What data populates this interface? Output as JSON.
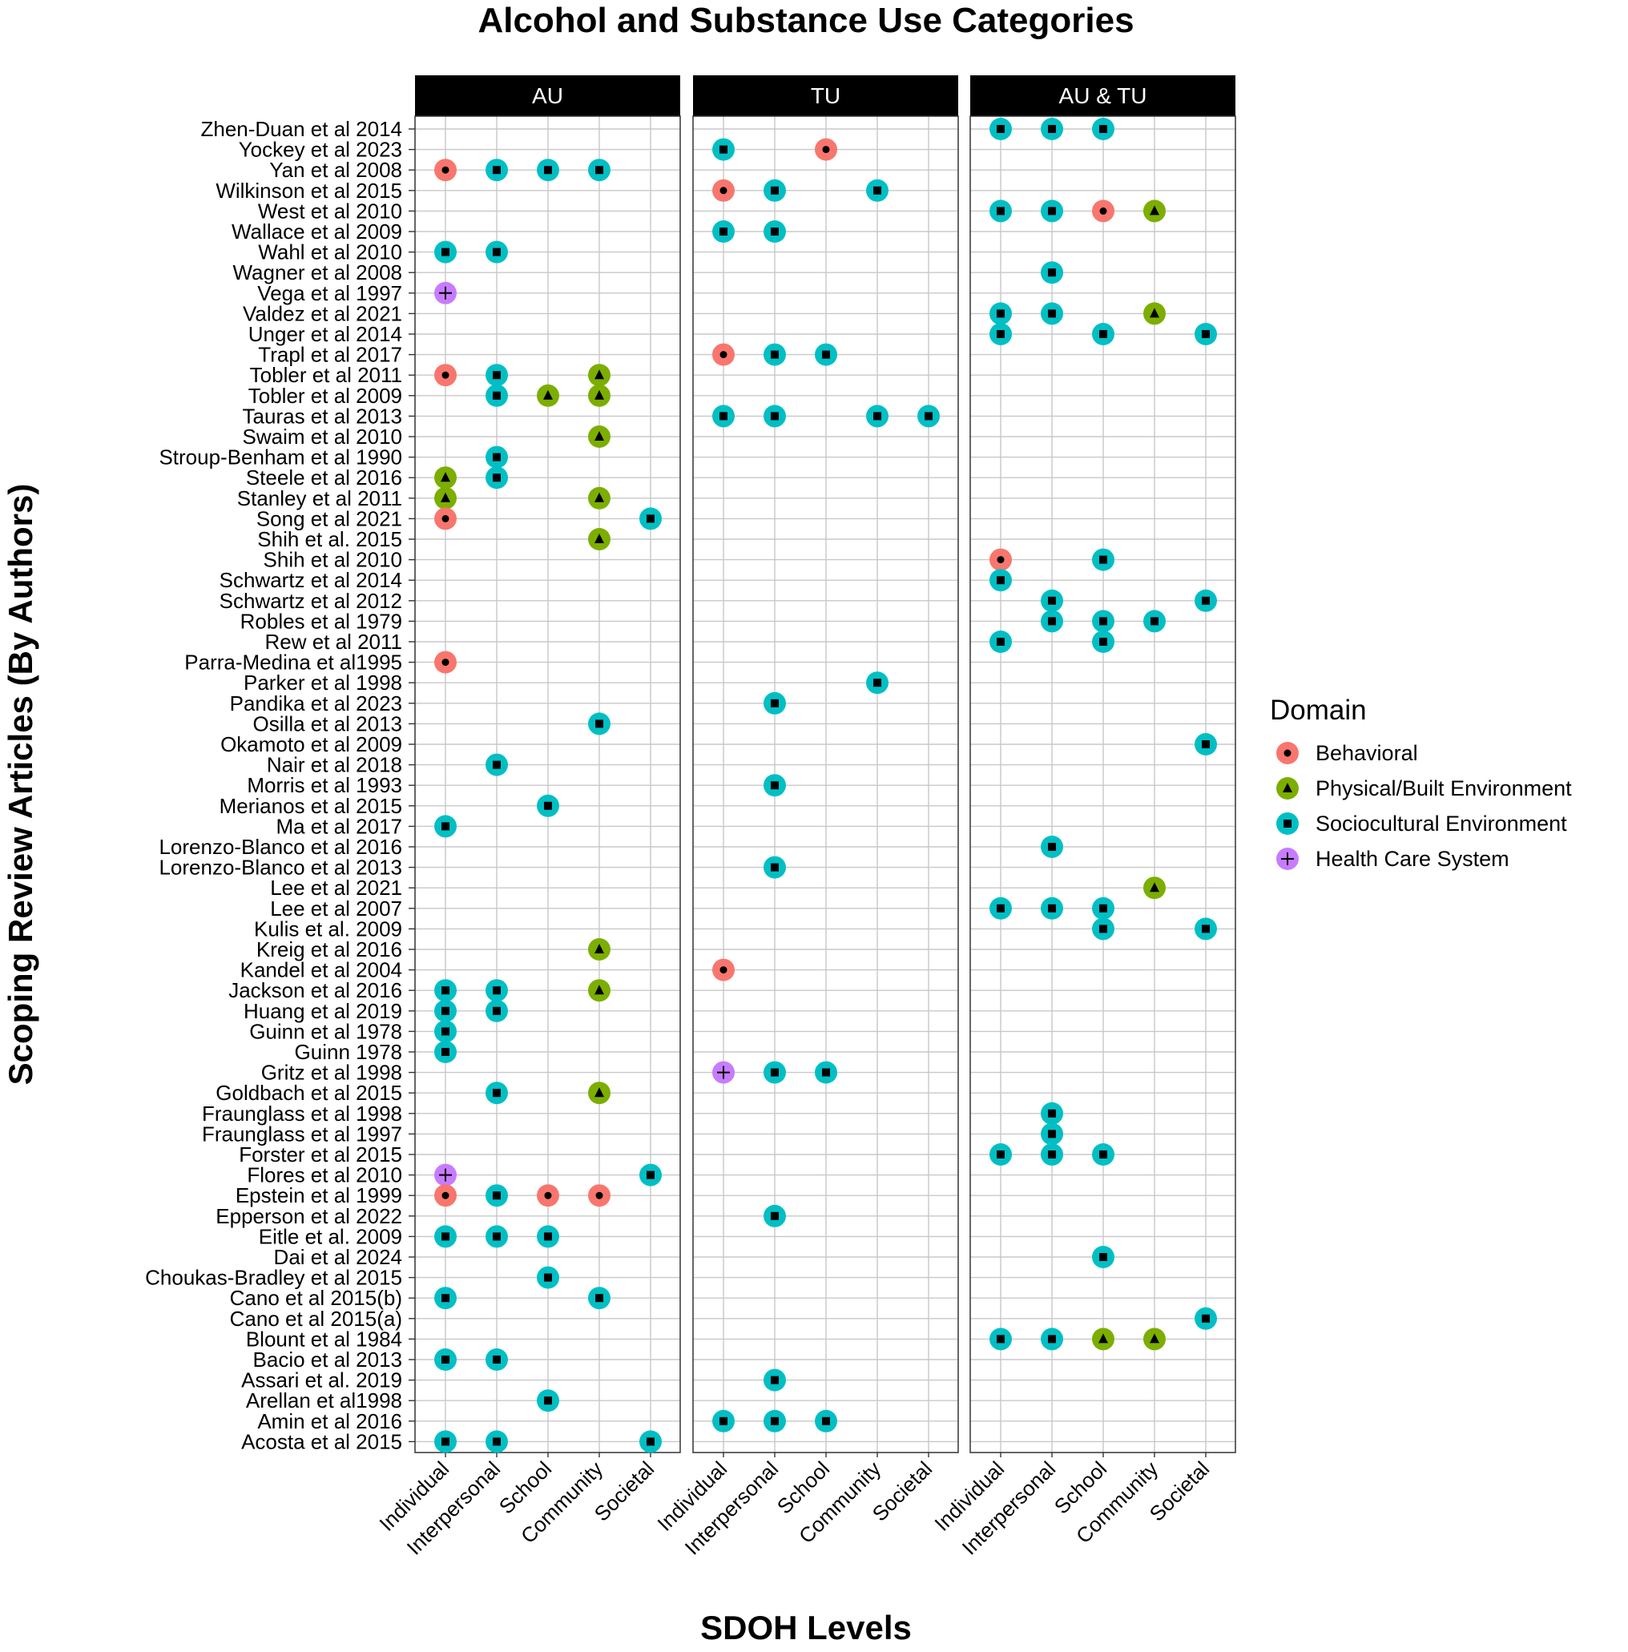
{
  "chart_data": {
    "type": "scatter",
    "title": "Alcohol and Substance Use Categories",
    "xlabel": "SDOH Levels",
    "ylabel": "Scoping Review Articles (By Authors)",
    "grid": true,
    "legend": {
      "title": "Domain",
      "placement": "right"
    },
    "panels": [
      "AU",
      "TU",
      "AU & TU"
    ],
    "levels": [
      "Individual",
      "Interpersonal",
      "School",
      "Community",
      "Societal"
    ],
    "domains": [
      {
        "name": "Behavioral",
        "color": "#F8766D",
        "shape": "circle"
      },
      {
        "name": "Physical/Built Environment",
        "color": "#7CAE00",
        "shape": "triangle"
      },
      {
        "name": "Sociocultural Environment",
        "color": "#00BFC4",
        "shape": "square"
      },
      {
        "name": "Health Care System",
        "color": "#C77CFF",
        "shape": "plus"
      }
    ],
    "articles": [
      "Zhen-Duan et al 2014",
      "Yockey et al 2023",
      "Yan et al 2008",
      "Wilkinson et al 2015",
      "West et al 2010",
      "Wallace et al 2009",
      "Wahl et al 2010",
      "Wagner et al 2008",
      "Vega et al 1997",
      "Valdez et al 2021",
      "Unger et al 2014",
      "Trapl et al 2017",
      "Tobler et al 2011",
      "Tobler et al 2009",
      "Tauras et al 2013",
      "Swaim et al 2010",
      "Stroup-Benham et al 1990",
      "Steele et al 2016",
      "Stanley et al 2011",
      "Song et al 2021",
      "Shih et al. 2015",
      "Shih et al 2010",
      "Schwartz et al 2014",
      "Schwartz et al 2012",
      "Robles et al 1979",
      "Rew et al 2011",
      "Parra-Medina et al1995",
      "Parker et al 1998",
      "Pandika et al 2023",
      "Osilla et al 2013",
      "Okamoto et al 2009",
      "Nair et al 2018",
      "Morris et al 1993",
      "Merianos et al 2015",
      "Ma et al 2017",
      "Lorenzo-Blanco et al 2016",
      "Lorenzo-Blanco et al 2013",
      "Lee et al 2021",
      "Lee et al 2007",
      "Kulis et al. 2009",
      "Kreig et al 2016",
      "Kandel et al 2004",
      "Jackson et al 2016",
      "Huang et al 2019",
      "Guinn et al 1978",
      "Guinn 1978",
      "Gritz et al 1998",
      "Goldbach et al 2015",
      "Fraunglass et al 1998",
      "Fraunglass et al 1997",
      "Forster et al 2015",
      "Flores et al 2010",
      "Epstein et al 1999",
      "Epperson et al 2022",
      "Eitle et al. 2009",
      "Dai et al 2024",
      "Choukas-Bradley et al 2015",
      "Cano et al 2015(b)",
      "Cano et al 2015(a)",
      "Blount et al 1984",
      "Bacio et al 2013",
      "Assari et al. 2019",
      "Arellan et al1998",
      "Amin et al 2016",
      "Acosta et al 2015"
    ],
    "points": [
      [
        "Yan et al 2008",
        "AU",
        "Individual",
        "Behavioral"
      ],
      [
        "Yan et al 2008",
        "AU",
        "Interpersonal",
        "Sociocultural Environment"
      ],
      [
        "Yan et al 2008",
        "AU",
        "School",
        "Sociocultural Environment"
      ],
      [
        "Yan et al 2008",
        "AU",
        "Community",
        "Sociocultural Environment"
      ],
      [
        "Wahl et al 2010",
        "AU",
        "Individual",
        "Sociocultural Environment"
      ],
      [
        "Wahl et al 2010",
        "AU",
        "Interpersonal",
        "Sociocultural Environment"
      ],
      [
        "Vega et al 1997",
        "AU",
        "Individual",
        "Health Care System"
      ],
      [
        "Tobler et al 2011",
        "AU",
        "Individual",
        "Behavioral"
      ],
      [
        "Tobler et al 2011",
        "AU",
        "Interpersonal",
        "Sociocultural Environment"
      ],
      [
        "Tobler et al 2011",
        "AU",
        "Community",
        "Physical/Built Environment"
      ],
      [
        "Tobler et al 2009",
        "AU",
        "Interpersonal",
        "Sociocultural Environment"
      ],
      [
        "Tobler et al 2009",
        "AU",
        "School",
        "Physical/Built Environment"
      ],
      [
        "Tobler et al 2009",
        "AU",
        "Community",
        "Physical/Built Environment"
      ],
      [
        "Swaim et al 2010",
        "AU",
        "Community",
        "Physical/Built Environment"
      ],
      [
        "Stroup-Benham et al 1990",
        "AU",
        "Interpersonal",
        "Sociocultural Environment"
      ],
      [
        "Steele et al 2016",
        "AU",
        "Individual",
        "Physical/Built Environment"
      ],
      [
        "Steele et al 2016",
        "AU",
        "Interpersonal",
        "Sociocultural Environment"
      ],
      [
        "Stanley et al 2011",
        "AU",
        "Individual",
        "Physical/Built Environment"
      ],
      [
        "Stanley et al 2011",
        "AU",
        "Community",
        "Physical/Built Environment"
      ],
      [
        "Song et al 2021",
        "AU",
        "Individual",
        "Behavioral"
      ],
      [
        "Song et al 2021",
        "AU",
        "Societal",
        "Sociocultural Environment"
      ],
      [
        "Shih et al. 2015",
        "AU",
        "Community",
        "Physical/Built Environment"
      ],
      [
        "Parra-Medina et al1995",
        "AU",
        "Individual",
        "Behavioral"
      ],
      [
        "Osilla et al 2013",
        "AU",
        "Community",
        "Sociocultural Environment"
      ],
      [
        "Nair et al 2018",
        "AU",
        "Interpersonal",
        "Sociocultural Environment"
      ],
      [
        "Merianos et al 2015",
        "AU",
        "School",
        "Sociocultural Environment"
      ],
      [
        "Ma et al 2017",
        "AU",
        "Individual",
        "Sociocultural Environment"
      ],
      [
        "Kreig et al 2016",
        "AU",
        "Community",
        "Physical/Built Environment"
      ],
      [
        "Jackson et al 2016",
        "AU",
        "Individual",
        "Sociocultural Environment"
      ],
      [
        "Jackson et al 2016",
        "AU",
        "Interpersonal",
        "Sociocultural Environment"
      ],
      [
        "Jackson et al 2016",
        "AU",
        "Community",
        "Physical/Built Environment"
      ],
      [
        "Huang et al 2019",
        "AU",
        "Individual",
        "Sociocultural Environment"
      ],
      [
        "Huang et al 2019",
        "AU",
        "Interpersonal",
        "Sociocultural Environment"
      ],
      [
        "Guinn et al 1978",
        "AU",
        "Individual",
        "Sociocultural Environment"
      ],
      [
        "Guinn 1978",
        "AU",
        "Individual",
        "Sociocultural Environment"
      ],
      [
        "Goldbach et al 2015",
        "AU",
        "Interpersonal",
        "Sociocultural Environment"
      ],
      [
        "Goldbach et al 2015",
        "AU",
        "Community",
        "Physical/Built Environment"
      ],
      [
        "Flores et al 2010",
        "AU",
        "Individual",
        "Health Care System"
      ],
      [
        "Flores et al 2010",
        "AU",
        "Societal",
        "Sociocultural Environment"
      ],
      [
        "Epstein et al 1999",
        "AU",
        "Individual",
        "Behavioral"
      ],
      [
        "Epstein et al 1999",
        "AU",
        "Interpersonal",
        "Sociocultural Environment"
      ],
      [
        "Epstein et al 1999",
        "AU",
        "School",
        "Behavioral"
      ],
      [
        "Epstein et al 1999",
        "AU",
        "Community",
        "Behavioral"
      ],
      [
        "Eitle et al. 2009",
        "AU",
        "Individual",
        "Sociocultural Environment"
      ],
      [
        "Eitle et al. 2009",
        "AU",
        "Interpersonal",
        "Sociocultural Environment"
      ],
      [
        "Eitle et al. 2009",
        "AU",
        "School",
        "Sociocultural Environment"
      ],
      [
        "Choukas-Bradley et al 2015",
        "AU",
        "School",
        "Sociocultural Environment"
      ],
      [
        "Cano et al 2015(b)",
        "AU",
        "Individual",
        "Sociocultural Environment"
      ],
      [
        "Cano et al 2015(b)",
        "AU",
        "Community",
        "Sociocultural Environment"
      ],
      [
        "Bacio et al 2013",
        "AU",
        "Individual",
        "Sociocultural Environment"
      ],
      [
        "Bacio et al 2013",
        "AU",
        "Interpersonal",
        "Sociocultural Environment"
      ],
      [
        "Arellan et al1998",
        "AU",
        "School",
        "Sociocultural Environment"
      ],
      [
        "Acosta et al 2015",
        "AU",
        "Individual",
        "Sociocultural Environment"
      ],
      [
        "Acosta et al 2015",
        "AU",
        "Interpersonal",
        "Sociocultural Environment"
      ],
      [
        "Acosta et al 2015",
        "AU",
        "Societal",
        "Sociocultural Environment"
      ],
      [
        "Yockey et al 2023",
        "TU",
        "Individual",
        "Sociocultural Environment"
      ],
      [
        "Yockey et al 2023",
        "TU",
        "School",
        "Behavioral"
      ],
      [
        "Wilkinson et al 2015",
        "TU",
        "Individual",
        "Behavioral"
      ],
      [
        "Wilkinson et al 2015",
        "TU",
        "Interpersonal",
        "Sociocultural Environment"
      ],
      [
        "Wilkinson et al 2015",
        "TU",
        "Community",
        "Sociocultural Environment"
      ],
      [
        "Wallace et al 2009",
        "TU",
        "Individual",
        "Sociocultural Environment"
      ],
      [
        "Wallace et al 2009",
        "TU",
        "Interpersonal",
        "Sociocultural Environment"
      ],
      [
        "Trapl et al 2017",
        "TU",
        "Individual",
        "Behavioral"
      ],
      [
        "Trapl et al 2017",
        "TU",
        "Interpersonal",
        "Sociocultural Environment"
      ],
      [
        "Trapl et al 2017",
        "TU",
        "School",
        "Sociocultural Environment"
      ],
      [
        "Tauras et al 2013",
        "TU",
        "Individual",
        "Sociocultural Environment"
      ],
      [
        "Tauras et al 2013",
        "TU",
        "Interpersonal",
        "Sociocultural Environment"
      ],
      [
        "Tauras et al 2013",
        "TU",
        "Community",
        "Sociocultural Environment"
      ],
      [
        "Tauras et al 2013",
        "TU",
        "Societal",
        "Sociocultural Environment"
      ],
      [
        "Parker et al 1998",
        "TU",
        "Community",
        "Sociocultural Environment"
      ],
      [
        "Pandika et al 2023",
        "TU",
        "Interpersonal",
        "Sociocultural Environment"
      ],
      [
        "Morris et al 1993",
        "TU",
        "Interpersonal",
        "Sociocultural Environment"
      ],
      [
        "Lorenzo-Blanco et al 2013",
        "TU",
        "Interpersonal",
        "Sociocultural Environment"
      ],
      [
        "Kandel et al 2004",
        "TU",
        "Individual",
        "Behavioral"
      ],
      [
        "Gritz et al 1998",
        "TU",
        "Individual",
        "Health Care System"
      ],
      [
        "Gritz et al 1998",
        "TU",
        "Interpersonal",
        "Sociocultural Environment"
      ],
      [
        "Gritz et al 1998",
        "TU",
        "School",
        "Sociocultural Environment"
      ],
      [
        "Epperson et al 2022",
        "TU",
        "Interpersonal",
        "Sociocultural Environment"
      ],
      [
        "Assari et al. 2019",
        "TU",
        "Interpersonal",
        "Sociocultural Environment"
      ],
      [
        "Amin et al 2016",
        "TU",
        "Individual",
        "Sociocultural Environment"
      ],
      [
        "Amin et al 2016",
        "TU",
        "Interpersonal",
        "Sociocultural Environment"
      ],
      [
        "Amin et al 2016",
        "TU",
        "School",
        "Sociocultural Environment"
      ],
      [
        "Zhen-Duan et al 2014",
        "AU & TU",
        "Individual",
        "Sociocultural Environment"
      ],
      [
        "Zhen-Duan et al 2014",
        "AU & TU",
        "Interpersonal",
        "Sociocultural Environment"
      ],
      [
        "Zhen-Duan et al 2014",
        "AU & TU",
        "School",
        "Sociocultural Environment"
      ],
      [
        "West et al 2010",
        "AU & TU",
        "Individual",
        "Sociocultural Environment"
      ],
      [
        "West et al 2010",
        "AU & TU",
        "Interpersonal",
        "Sociocultural Environment"
      ],
      [
        "West et al 2010",
        "AU & TU",
        "School",
        "Behavioral"
      ],
      [
        "West et al 2010",
        "AU & TU",
        "Community",
        "Physical/Built Environment"
      ],
      [
        "Wagner et al 2008",
        "AU & TU",
        "Interpersonal",
        "Sociocultural Environment"
      ],
      [
        "Valdez et al 2021",
        "AU & TU",
        "Individual",
        "Sociocultural Environment"
      ],
      [
        "Valdez et al 2021",
        "AU & TU",
        "Interpersonal",
        "Sociocultural Environment"
      ],
      [
        "Valdez et al 2021",
        "AU & TU",
        "Community",
        "Physical/Built Environment"
      ],
      [
        "Unger et al 2014",
        "AU & TU",
        "Individual",
        "Sociocultural Environment"
      ],
      [
        "Unger et al 2014",
        "AU & TU",
        "School",
        "Sociocultural Environment"
      ],
      [
        "Unger et al 2014",
        "AU & TU",
        "Societal",
        "Sociocultural Environment"
      ],
      [
        "Shih et al 2010",
        "AU & TU",
        "Individual",
        "Behavioral"
      ],
      [
        "Shih et al 2010",
        "AU & TU",
        "School",
        "Sociocultural Environment"
      ],
      [
        "Schwartz et al 2014",
        "AU & TU",
        "Individual",
        "Sociocultural Environment"
      ],
      [
        "Schwartz et al 2012",
        "AU & TU",
        "Interpersonal",
        "Sociocultural Environment"
      ],
      [
        "Schwartz et al 2012",
        "AU & TU",
        "Societal",
        "Sociocultural Environment"
      ],
      [
        "Robles et al 1979",
        "AU & TU",
        "Interpersonal",
        "Sociocultural Environment"
      ],
      [
        "Robles et al 1979",
        "AU & TU",
        "School",
        "Sociocultural Environment"
      ],
      [
        "Robles et al 1979",
        "AU & TU",
        "Community",
        "Sociocultural Environment"
      ],
      [
        "Rew et al 2011",
        "AU & TU",
        "Individual",
        "Sociocultural Environment"
      ],
      [
        "Rew et al 2011",
        "AU & TU",
        "School",
        "Sociocultural Environment"
      ],
      [
        "Okamoto et al 2009",
        "AU & TU",
        "Societal",
        "Sociocultural Environment"
      ],
      [
        "Lorenzo-Blanco et al 2016",
        "AU & TU",
        "Interpersonal",
        "Sociocultural Environment"
      ],
      [
        "Lee et al 2021",
        "AU & TU",
        "Community",
        "Physical/Built Environment"
      ],
      [
        "Lee et al 2007",
        "AU & TU",
        "Individual",
        "Sociocultural Environment"
      ],
      [
        "Lee et al 2007",
        "AU & TU",
        "Interpersonal",
        "Sociocultural Environment"
      ],
      [
        "Lee et al 2007",
        "AU & TU",
        "School",
        "Sociocultural Environment"
      ],
      [
        "Kulis et al. 2009",
        "AU & TU",
        "School",
        "Sociocultural Environment"
      ],
      [
        "Kulis et al. 2009",
        "AU & TU",
        "Societal",
        "Sociocultural Environment"
      ],
      [
        "Fraunglass et al 1998",
        "AU & TU",
        "Interpersonal",
        "Sociocultural Environment"
      ],
      [
        "Fraunglass et al 1997",
        "AU & TU",
        "Interpersonal",
        "Sociocultural Environment"
      ],
      [
        "Forster et al 2015",
        "AU & TU",
        "Individual",
        "Sociocultural Environment"
      ],
      [
        "Forster et al 2015",
        "AU & TU",
        "Interpersonal",
        "Sociocultural Environment"
      ],
      [
        "Forster et al 2015",
        "AU & TU",
        "School",
        "Sociocultural Environment"
      ],
      [
        "Dai et al 2024",
        "AU & TU",
        "School",
        "Sociocultural Environment"
      ],
      [
        "Cano et al 2015(a)",
        "AU & TU",
        "Societal",
        "Sociocultural Environment"
      ],
      [
        "Blount et al 1984",
        "AU & TU",
        "Individual",
        "Sociocultural Environment"
      ],
      [
        "Blount et al 1984",
        "AU & TU",
        "Interpersonal",
        "Sociocultural Environment"
      ],
      [
        "Blount et al 1984",
        "AU & TU",
        "School",
        "Physical/Built Environment"
      ],
      [
        "Blount et al 1984",
        "AU & TU",
        "Community",
        "Physical/Built Environment"
      ]
    ]
  }
}
